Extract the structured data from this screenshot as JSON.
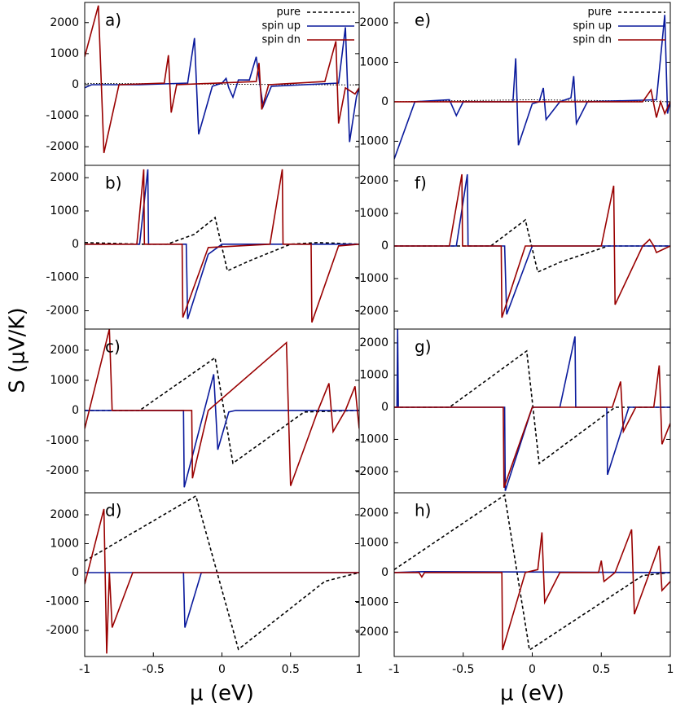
{
  "ylabel": "S (μV/K)",
  "chart_data": [
    {
      "type": "line",
      "label": "a)",
      "legend": "upper right",
      "xlim": [
        -1,
        1
      ],
      "ylim": [
        -2600,
        2650
      ],
      "yticks": [
        -2000,
        -1000,
        0,
        1000,
        2000
      ],
      "series": [
        {
          "name": "pure",
          "color": "#000000",
          "linestyle": "dotted",
          "x": [
            -1,
            -0.5,
            0,
            0.5,
            1
          ],
          "values": [
            40,
            30,
            15,
            5,
            -10
          ]
        },
        {
          "name": "spin up",
          "color": "#0a1a9c",
          "linestyle": "solid",
          "x": [
            -1,
            -0.95,
            -0.6,
            -0.25,
            -0.2,
            -0.17,
            -0.07,
            0,
            0.03,
            0.05,
            0.08,
            0.12,
            0.2,
            0.25,
            0.28,
            0.3,
            0.36,
            0.6,
            0.85,
            0.9,
            0.93,
            0.98,
            1
          ],
          "values": [
            -100,
            0,
            0,
            50,
            1500,
            -1600,
            -50,
            50,
            200,
            -100,
            -400,
            150,
            150,
            900,
            -100,
            -700,
            -50,
            0,
            50,
            1850,
            -1850,
            -400,
            -100
          ]
        },
        {
          "name": "spin dn",
          "color": "#990000",
          "linestyle": "solid",
          "x": [
            -1,
            -0.9,
            -0.86,
            -0.75,
            -0.42,
            -0.39,
            -0.37,
            -0.33,
            0.25,
            0.27,
            0.29,
            0.34,
            0.75,
            0.83,
            0.85,
            0.9,
            0.97,
            1
          ],
          "values": [
            900,
            2550,
            -2200,
            0,
            50,
            950,
            -900,
            0,
            100,
            700,
            -800,
            0,
            100,
            1400,
            -1250,
            -100,
            -300,
            -100
          ]
        }
      ]
    },
    {
      "type": "line",
      "label": "b)",
      "xlim": [
        -1,
        1
      ],
      "ylim": [
        -2550,
        2370
      ],
      "yticks": [
        -2000,
        -1000,
        0,
        1000,
        2000
      ],
      "series": [
        {
          "color": "#000000",
          "linestyle": "dashed",
          "x": [
            -1,
            -0.6,
            -0.4,
            -0.2,
            -0.05,
            0.04,
            0.2,
            0.5,
            0.7,
            1
          ],
          "values": [
            50,
            0,
            0,
            300,
            800,
            -800,
            -500,
            0,
            50,
            0
          ]
        },
        {
          "color": "#0a1a9c",
          "linestyle": "solid",
          "x": [
            -1,
            -0.6,
            -0.54,
            -0.535,
            -0.26,
            -0.25,
            -0.1,
            0,
            1
          ],
          "values": [
            0,
            0,
            2250,
            0,
            0,
            -2250,
            -300,
            0,
            0
          ]
        },
        {
          "color": "#990000",
          "linestyle": "solid",
          "x": [
            -1,
            -0.62,
            -0.57,
            -0.565,
            -0.29,
            -0.285,
            -0.1,
            0.35,
            0.44,
            0.445,
            0.65,
            0.655,
            0.85,
            1
          ],
          "values": [
            0,
            0,
            2250,
            0,
            0,
            -2200,
            -100,
            0,
            2250,
            0,
            0,
            -2350,
            -50,
            0
          ]
        }
      ]
    },
    {
      "type": "line",
      "label": "c)",
      "xlim": [
        -1,
        1
      ],
      "ylim": [
        -2730,
        2700
      ],
      "yticks": [
        -2000,
        -1000,
        0,
        1000,
        2000
      ],
      "series": [
        {
          "color": "#000000",
          "linestyle": "dashed",
          "x": [
            -1,
            -0.6,
            -0.05,
            0.08,
            0.6,
            1
          ],
          "values": [
            0,
            0,
            1750,
            -1750,
            -50,
            0
          ]
        },
        {
          "color": "#0a1a9c",
          "linestyle": "solid",
          "x": [
            -1,
            -0.28,
            -0.275,
            -0.06,
            -0.03,
            0.05,
            0.1,
            1
          ],
          "values": [
            0,
            0,
            -2550,
            1200,
            -1300,
            -50,
            0,
            0
          ]
        },
        {
          "color": "#990000",
          "linestyle": "solid",
          "x": [
            -1,
            -0.82,
            -0.8,
            -0.22,
            -0.215,
            -0.1,
            0.47,
            0.5,
            0.7,
            0.78,
            0.81,
            0.9,
            0.97,
            1
          ],
          "values": [
            -600,
            2700,
            0,
            0,
            -2250,
            0,
            2250,
            -2500,
            0,
            900,
            -700,
            0,
            800,
            -600
          ]
        }
      ]
    },
    {
      "type": "line",
      "label": "d)",
      "xlabel": "μ (eV)",
      "xlim": [
        -1,
        1
      ],
      "xticks": [
        -1,
        -0.5,
        0,
        0.5,
        1
      ],
      "ylim": [
        -2900,
        2760
      ],
      "yticks": [
        -2000,
        -1000,
        0,
        1000,
        2000
      ],
      "series": [
        {
          "color": "#000000",
          "linestyle": "dashed",
          "x": [
            -1,
            -0.19,
            0.12,
            0.75,
            1
          ],
          "values": [
            400,
            2650,
            -2650,
            -300,
            0
          ]
        },
        {
          "color": "#0a1a9c",
          "linestyle": "solid",
          "x": [
            -1,
            -0.28,
            -0.27,
            -0.15,
            1
          ],
          "values": [
            0,
            0,
            -1900,
            0,
            0
          ]
        },
        {
          "color": "#990000",
          "linestyle": "solid",
          "x": [
            -1,
            -0.86,
            -0.84,
            -0.82,
            -0.8,
            -0.65,
            1
          ],
          "values": [
            -400,
            2200,
            -2800,
            0,
            -1900,
            0,
            0
          ]
        }
      ]
    },
    {
      "type": "line",
      "label": "e)",
      "legend": "upper right",
      "xlim": [
        -1,
        1
      ],
      "ylim": [
        -1610,
        2515
      ],
      "yticks": [
        -1000,
        0,
        1000,
        2000
      ],
      "series": [
        {
          "name": "pure",
          "color": "#000000",
          "linestyle": "dotted",
          "x": [
            -1,
            -0.5,
            0,
            0.5,
            1
          ],
          "values": [
            0,
            30,
            50,
            30,
            0
          ]
        },
        {
          "name": "spin up",
          "color": "#0a1a9c",
          "linestyle": "solid",
          "x": [
            -1,
            -0.85,
            -0.6,
            -0.55,
            -0.5,
            -0.14,
            -0.12,
            -0.1,
            0,
            0.05,
            0.08,
            0.1,
            0.2,
            0.28,
            0.3,
            0.32,
            0.4,
            0.9,
            0.96,
            0.98,
            1
          ],
          "values": [
            -1450,
            0,
            50,
            -350,
            0,
            0,
            1100,
            -1100,
            -50,
            0,
            350,
            -450,
            0,
            100,
            650,
            -550,
            0,
            50,
            2200,
            -300,
            0
          ]
        },
        {
          "name": "spin dn",
          "color": "#990000",
          "linestyle": "solid",
          "x": [
            -1,
            0.8,
            0.86,
            0.9,
            0.93,
            0.96,
            1
          ],
          "values": [
            0,
            0,
            300,
            -400,
            0,
            -300,
            0
          ]
        }
      ]
    },
    {
      "type": "line",
      "label": "f)",
      "xlim": [
        -1,
        1
      ],
      "ylim": [
        -2550,
        2475
      ],
      "yticks": [
        -2000,
        -1000,
        0,
        1000,
        2000
      ],
      "series": [
        {
          "color": "#000000",
          "linestyle": "dashed",
          "x": [
            -1,
            -0.3,
            -0.05,
            0.04,
            0.2,
            0.55,
            1
          ],
          "values": [
            0,
            0,
            800,
            -800,
            -500,
            0,
            0
          ]
        },
        {
          "color": "#0a1a9c",
          "linestyle": "solid",
          "x": [
            -1,
            -0.55,
            -0.47,
            -0.465,
            -0.2,
            -0.185,
            0,
            1
          ],
          "values": [
            0,
            0,
            2200,
            0,
            0,
            -2100,
            0,
            0
          ]
        },
        {
          "color": "#990000",
          "linestyle": "solid",
          "x": [
            -1,
            -0.6,
            -0.51,
            -0.505,
            -0.225,
            -0.22,
            -0.05,
            0.5,
            0.59,
            0.6,
            0.8,
            0.85,
            0.88,
            0.9,
            1
          ],
          "values": [
            0,
            0,
            2200,
            0,
            0,
            -2200,
            0,
            0,
            1850,
            -1800,
            0,
            200,
            0,
            -200,
            0
          ]
        }
      ]
    },
    {
      "type": "line",
      "label": "g)",
      "xlim": [
        -1,
        1
      ],
      "ylim": [
        -2660,
        2430
      ],
      "yticks": [
        -2000,
        -1000,
        0,
        1000,
        2000
      ],
      "series": [
        {
          "color": "#000000",
          "linestyle": "dashed",
          "x": [
            -1,
            -0.6,
            -0.04,
            0.05,
            0.6,
            1
          ],
          "values": [
            0,
            0,
            1750,
            -1750,
            0,
            0
          ]
        },
        {
          "color": "#0a1a9c",
          "linestyle": "solid",
          "x": [
            -1,
            -0.98,
            -0.975,
            -0.97,
            -0.2,
            -0.195,
            0,
            0.2,
            0.31,
            0.315,
            0.54,
            0.545,
            0.7,
            1
          ],
          "values": [
            0,
            0,
            2450,
            0,
            0,
            -2600,
            0,
            0,
            2200,
            0,
            0,
            -2100,
            0,
            0
          ]
        },
        {
          "color": "#990000",
          "linestyle": "solid",
          "x": [
            -1,
            -0.21,
            -0.205,
            0,
            0.58,
            0.64,
            0.66,
            0.75,
            0.88,
            0.92,
            0.94,
            1
          ],
          "values": [
            0,
            0,
            -2500,
            0,
            0,
            800,
            -750,
            0,
            0,
            1300,
            -1150,
            -500
          ]
        }
      ]
    },
    {
      "type": "line",
      "label": "h)",
      "xlabel": "μ (eV)",
      "xlim": [
        -1,
        1
      ],
      "xticks": [
        -1,
        -0.5,
        0,
        0.5,
        1
      ],
      "ylim": [
        -2820,
        2680
      ],
      "yticks": [
        -2000,
        -1000,
        0,
        1000,
        2000
      ],
      "series": [
        {
          "color": "#000000",
          "linestyle": "dashed",
          "x": [
            -1,
            -0.2,
            -0.02,
            0.8,
            1
          ],
          "values": [
            100,
            2600,
            -2600,
            -100,
            0
          ]
        },
        {
          "color": "#0a1a9c",
          "linestyle": "solid",
          "x": [
            -1,
            -0.8,
            1
          ],
          "values": [
            0,
            30,
            0
          ]
        },
        {
          "color": "#990000",
          "linestyle": "solid",
          "x": [
            -1,
            -0.82,
            -0.8,
            -0.78,
            -0.22,
            -0.215,
            -0.05,
            0.04,
            0.07,
            0.09,
            0.2,
            0.48,
            0.5,
            0.52,
            0.6,
            0.72,
            0.74,
            0.85,
            0.92,
            0.94,
            1
          ],
          "values": [
            0,
            0,
            -150,
            0,
            0,
            -2600,
            0,
            100,
            1350,
            -1000,
            0,
            0,
            400,
            -300,
            0,
            1450,
            -1400,
            0,
            900,
            -600,
            -300
          ]
        }
      ]
    }
  ]
}
